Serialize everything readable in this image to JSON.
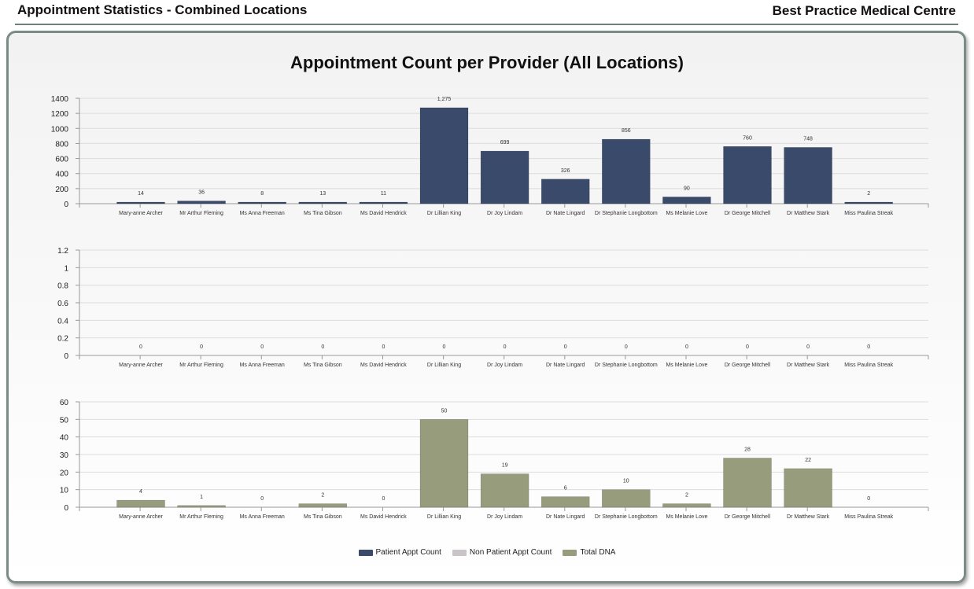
{
  "header": {
    "report_title": "Appointment Statistics - Combined Locations",
    "practice_name": "Best Practice Medical Centre"
  },
  "chart_title": "Appointment Count per Provider (All Locations)",
  "colors": {
    "patient": "#3a4a6b",
    "non_patient": "#c8c4c8",
    "dna": "#979c7c"
  },
  "legend": [
    {
      "label": "Patient Appt Count",
      "color": "#3a4a6b"
    },
    {
      "label": "Non Patient Appt Count",
      "color": "#c8c4c8"
    },
    {
      "label": "Total DNA",
      "color": "#979c7c"
    }
  ],
  "chart_data": [
    {
      "type": "bar",
      "series_name": "Patient Appt Count",
      "categories": [
        "Mary-anne Archer",
        "Mr Arthur Fleming",
        "Ms Anna Freeman",
        "Ms Tina Gibson",
        "Ms David Hendrick",
        "Dr Lillian King",
        "Dr Joy Lindam",
        "Dr Nate Lingard",
        "Dr Stephanie Longbottom",
        "Ms Melanie Love",
        "Dr George Mitchell",
        "Dr Matthew Stark",
        "Miss Paulina Streak"
      ],
      "values": [
        14,
        36,
        8,
        13,
        11,
        1275,
        699,
        326,
        856,
        90,
        760,
        748,
        2
      ],
      "value_labels": [
        "14",
        "36",
        "8",
        "13",
        "11",
        "1,275",
        "699",
        "326",
        "856",
        "90",
        "760",
        "748",
        "2"
      ],
      "ylim": [
        0,
        1400
      ],
      "yticks": [
        "0",
        "200",
        "400",
        "600",
        "800",
        "1000",
        "1200",
        "1400"
      ],
      "grid": true
    },
    {
      "type": "bar",
      "series_name": "Non Patient Appt Count",
      "categories": [
        "Mary-anne Archer",
        "Mr Arthur Fleming",
        "Ms Anna Freeman",
        "Ms Tina Gibson",
        "Ms David Hendrick",
        "Dr Lillian King",
        "Dr Joy Lindam",
        "Dr Nate Lingard",
        "Dr Stephanie Longbottom",
        "Ms Melanie Love",
        "Dr George Mitchell",
        "Dr Matthew Stark",
        "Miss Paulina Streak"
      ],
      "values": [
        0,
        0,
        0,
        0,
        0,
        0,
        0,
        0,
        0,
        0,
        0,
        0,
        0
      ],
      "value_labels": [
        "0",
        "0",
        "0",
        "0",
        "0",
        "0",
        "0",
        "0",
        "0",
        "0",
        "0",
        "0",
        "0"
      ],
      "ylim": [
        0,
        1.2
      ],
      "yticks": [
        "0",
        "0.2",
        "0.4",
        "0.6",
        "0.8",
        "1",
        "1.2"
      ],
      "grid": true
    },
    {
      "type": "bar",
      "series_name": "Total DNA",
      "categories": [
        "Mary-anne Archer",
        "Mr Arthur Fleming",
        "Ms Anna Freeman",
        "Ms Tina Gibson",
        "Ms David Hendrick",
        "Dr Lillian King",
        "Dr Joy Lindam",
        "Dr Nate Lingard",
        "Dr Stephanie Longbottom",
        "Ms Melanie Love",
        "Dr George Mitchell",
        "Dr Matthew Stark",
        "Miss Paulina Streak"
      ],
      "values": [
        4,
        1,
        0,
        2,
        0,
        50,
        19,
        6,
        10,
        2,
        28,
        22,
        0
      ],
      "value_labels": [
        "4",
        "1",
        "0",
        "2",
        "0",
        "50",
        "19",
        "6",
        "10",
        "2",
        "28",
        "22",
        "0"
      ],
      "ylim": [
        0,
        60
      ],
      "yticks": [
        "0",
        "10",
        "20",
        "30",
        "40",
        "50",
        "60"
      ],
      "grid": true
    }
  ]
}
